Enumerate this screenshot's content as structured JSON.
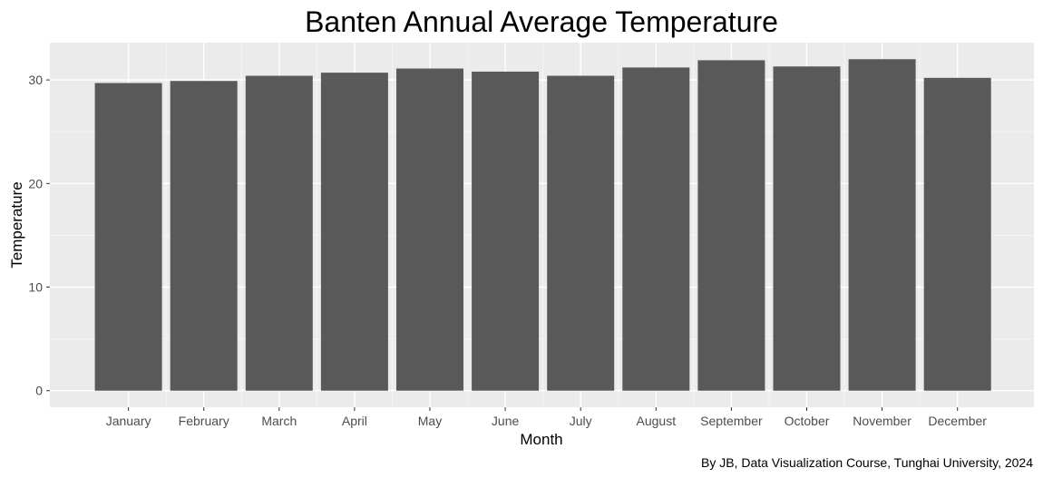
{
  "chart_data": {
    "type": "bar",
    "title": "Banten Annual Average Temperature",
    "xlabel": "Month",
    "ylabel": "Temperature",
    "caption": "By JB, Data Visualization Course, Tunghai University, 2024",
    "categories": [
      "January",
      "February",
      "March",
      "April",
      "May",
      "June",
      "July",
      "August",
      "September",
      "October",
      "November",
      "December"
    ],
    "values": [
      29.7,
      29.9,
      30.4,
      30.7,
      31.1,
      30.8,
      30.4,
      31.2,
      31.9,
      31.3,
      32.0,
      30.2
    ],
    "ylim": [
      -1.6,
      33.6
    ],
    "yticks": [
      0,
      10,
      20,
      30
    ],
    "ytick_labels": [
      "0",
      "10",
      "20",
      "30"
    ],
    "grid": true,
    "legend": "none",
    "colors": {
      "bar": "#595959",
      "panel": "#ebebeb",
      "grid_major": "#ffffff",
      "grid_minor": "#f5f5f5",
      "tick_text": "#4d4d4d",
      "text": "#000000"
    }
  }
}
